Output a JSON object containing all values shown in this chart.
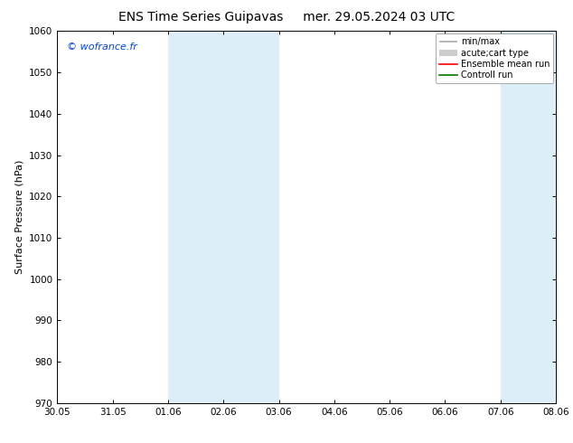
{
  "title_left": "ENS Time Series Guipavas",
  "title_right": "mer. 29.05.2024 03 UTC",
  "ylabel": "Surface Pressure (hPa)",
  "watermark": "© wofrance.fr",
  "ylim": [
    970,
    1060
  ],
  "yticks": [
    970,
    980,
    990,
    1000,
    1010,
    1020,
    1030,
    1040,
    1050,
    1060
  ],
  "xtick_labels": [
    "30.05",
    "31.05",
    "01.06",
    "02.06",
    "03.06",
    "04.06",
    "05.06",
    "06.06",
    "07.06",
    "08.06"
  ],
  "shaded_regions": [
    {
      "xmin": 2,
      "xmax": 4
    },
    {
      "xmin": 8,
      "xmax": 9
    }
  ],
  "shaded_color": "#ddeef8",
  "legend_entries": [
    {
      "label": "min/max",
      "color": "#aaaaaa"
    },
    {
      "label": "acute;cart type",
      "color": "#cccccc"
    },
    {
      "label": "Ensemble mean run",
      "color": "#ff0000"
    },
    {
      "label": "Controll run",
      "color": "#007700"
    }
  ],
  "background_color": "#ffffff",
  "border_color": "#000000",
  "watermark_color": "#0044cc",
  "title_fontsize": 10,
  "tick_fontsize": 7.5,
  "ylabel_fontsize": 8,
  "legend_fontsize": 7,
  "watermark_fontsize": 8
}
